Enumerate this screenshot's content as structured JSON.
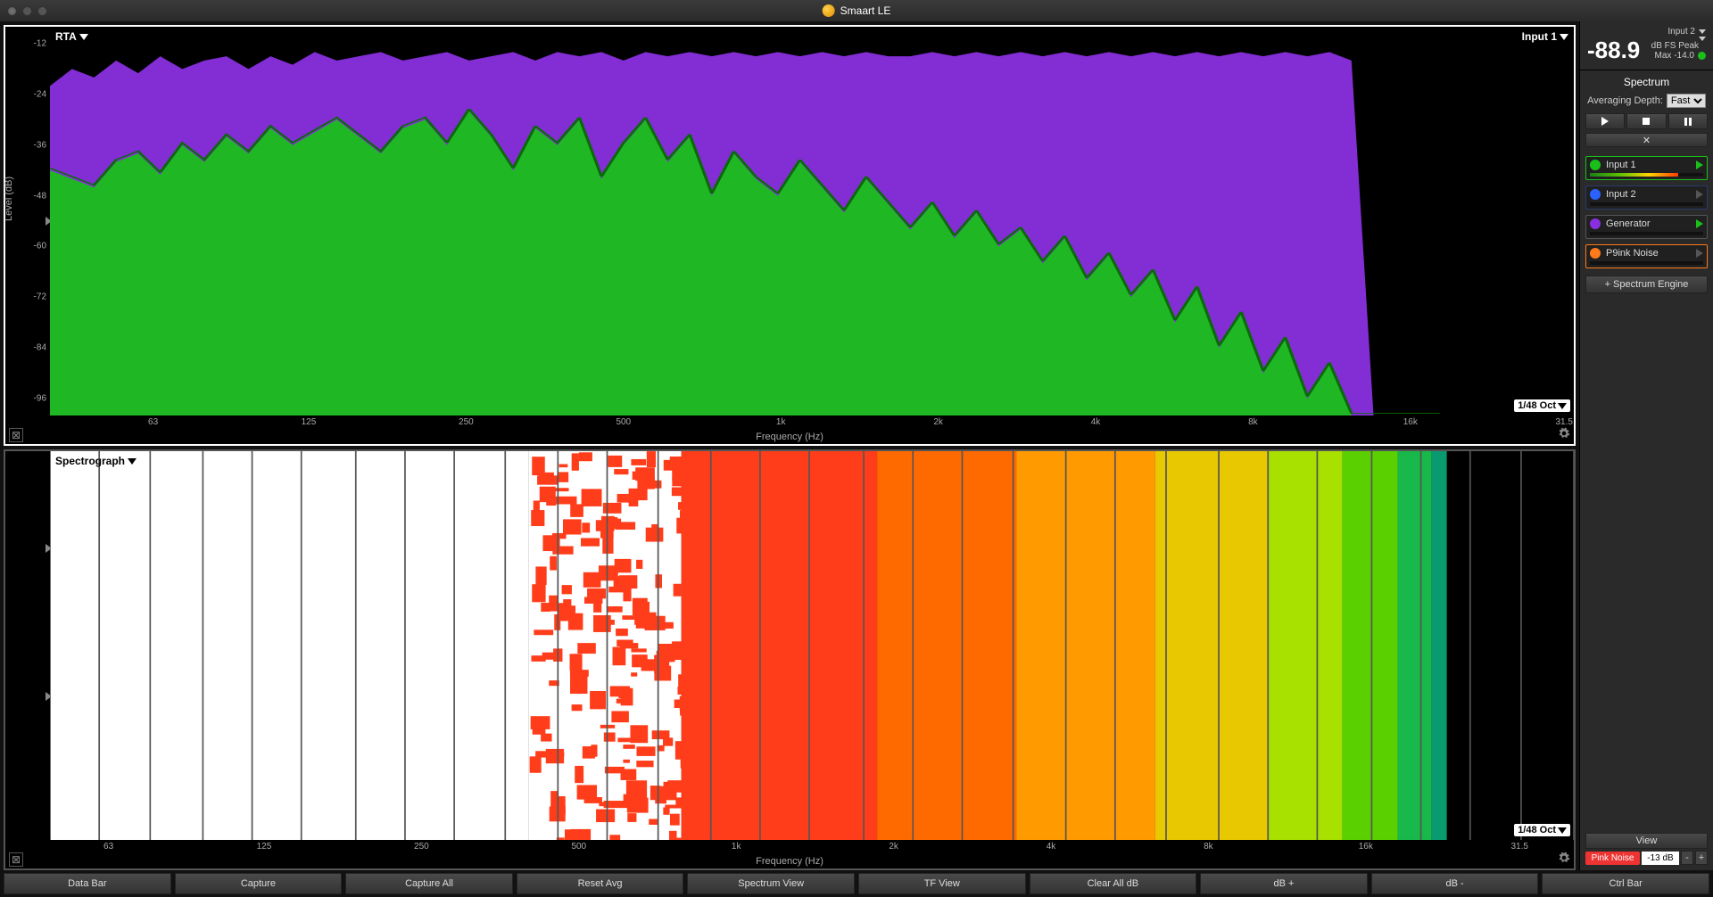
{
  "window": {
    "title": "Smaart LE"
  },
  "meter": {
    "input_select": "Input 2",
    "db_value": "-88.9",
    "mode": "dB FS Peak",
    "max_text": "Max -14.0",
    "indicator_color": "#1abf1a"
  },
  "spectrum_section": {
    "title": "Spectrum",
    "averaging_label": "Averaging Depth:",
    "averaging_value": "Fast",
    "add_engine": "+ Spectrum Engine"
  },
  "inputs_list": [
    {
      "label": "Input 1",
      "dot": "#1abf1a",
      "border": "#1abf1a",
      "play": "#1abf1a",
      "meter_pct": 78,
      "meter_grad": "linear-gradient(to right,#1a7f1a,#5ac000,#ffd400,#ff3a00)"
    },
    {
      "label": "Input 2",
      "dot": "#2a62ff",
      "border": "#2a3a6a",
      "play": "#555",
      "meter_pct": 0,
      "meter_grad": ""
    },
    {
      "label": "Generator",
      "dot": "#8a2fe0",
      "border": "#555",
      "play": "#1abf1a",
      "meter_pct": 0,
      "meter_grad": ""
    },
    {
      "label": "P9ink Noise",
      "dot": "#ff7a1a",
      "border": "#ff7a1a",
      "play": "#555",
      "meter_pct": 0,
      "meter_grad": ""
    }
  ],
  "view_btn": "View",
  "generator": {
    "label": "Pink Noise",
    "level": "-13 dB"
  },
  "bottom_buttons": [
    "Data Bar",
    "Capture",
    "Capture All",
    "Reset Avg",
    "Spectrum View",
    "TF View",
    "Clear All dB",
    "dB +",
    "dB -",
    "Ctrl Bar"
  ],
  "rta": {
    "title": "RTA",
    "source": "Input 1",
    "resolution": "1/48 Oct",
    "y_label": "Level (dB)",
    "x_label": "Frequency (Hz)",
    "y_min": -100,
    "y_max": -8,
    "y_ticks": [
      -12,
      -24,
      -36,
      -48,
      -60,
      -72,
      -84,
      -96
    ],
    "y_handle_db": -54,
    "x_ticks": [
      {
        "v": 63,
        "l": "63"
      },
      {
        "v": 125,
        "l": "125"
      },
      {
        "v": 250,
        "l": "250"
      },
      {
        "v": 500,
        "l": "500"
      },
      {
        "v": 1000,
        "l": "1k"
      },
      {
        "v": 2000,
        "l": "2k"
      },
      {
        "v": 4000,
        "l": "4k"
      },
      {
        "v": 8000,
        "l": "8k"
      },
      {
        "v": 16000,
        "l": "16k"
      },
      {
        "v": 31500,
        "l": "31.5"
      }
    ],
    "f_min": 40,
    "f_max": 40000,
    "colors": {
      "trace1": "#1abf1a",
      "trace2": "#8a2fe0",
      "grid": "#2a2a2a",
      "bg": "#000000"
    },
    "series": {
      "purple_db": [
        -22,
        -18,
        -20,
        -16,
        -19,
        -15,
        -18,
        -16,
        -15,
        -18,
        -15,
        -17,
        -14,
        -16,
        -15,
        -14,
        -16,
        -15,
        -14,
        -16,
        -15,
        -14,
        -16,
        -14,
        -15,
        -14,
        -16,
        -14,
        -15,
        -14,
        -15,
        -14,
        -15,
        -14,
        -15,
        -14,
        -15,
        -14,
        -15,
        -15,
        -14,
        -15,
        -14,
        -15,
        -14,
        -15,
        -14,
        -15,
        -14,
        -15,
        -14,
        -15,
        -14,
        -15,
        -14,
        -15,
        -14,
        -15,
        -14,
        -16,
        -100,
        -100,
        -100,
        -100
      ],
      "purple_stop_ratio": 0.912,
      "green_db": [
        -42,
        -44,
        -46,
        -40,
        -38,
        -43,
        -36,
        -40,
        -34,
        -38,
        -32,
        -36,
        -33,
        -30,
        -34,
        -38,
        -32,
        -30,
        -36,
        -28,
        -34,
        -42,
        -32,
        -36,
        -30,
        -44,
        -36,
        -30,
        -40,
        -34,
        -48,
        -38,
        -44,
        -48,
        -40,
        -46,
        -52,
        -44,
        -50,
        -56,
        -50,
        -58,
        -52,
        -60,
        -56,
        -64,
        -58,
        -68,
        -62,
        -72,
        -66,
        -78,
        -70,
        -84,
        -76,
        -90,
        -82,
        -96,
        -88,
        -100,
        -100,
        -100,
        -100,
        -100
      ]
    }
  },
  "spectro": {
    "title": "Spectrograph",
    "source": "Input 1",
    "resolution": "1/48 Oct",
    "x_label": "Frequency (Hz)",
    "f_min": 40,
    "f_max": 40000,
    "x_ticks": [
      {
        "v": 63,
        "l": "63"
      },
      {
        "v": 125,
        "l": "125"
      },
      {
        "v": 250,
        "l": "250"
      },
      {
        "v": 500,
        "l": "500"
      },
      {
        "v": 1000,
        "l": "1k"
      },
      {
        "v": 2000,
        "l": "2k"
      },
      {
        "v": 4000,
        "l": "4k"
      },
      {
        "v": 8000,
        "l": "8k"
      },
      {
        "v": 16000,
        "l": "16k"
      },
      {
        "v": 31500,
        "l": "31.5"
      }
    ],
    "y_handles": [
      0.25,
      0.63
    ],
    "bands": [
      {
        "f0": 40,
        "f1": 350,
        "fill": "#ffffff"
      },
      {
        "f0": 350,
        "f1": 700,
        "fill": "speckle"
      },
      {
        "f0": 700,
        "f1": 1700,
        "fill": "#ff3d1a"
      },
      {
        "f0": 1700,
        "f1": 3200,
        "fill": "#ff6a00"
      },
      {
        "f0": 3200,
        "f1": 6000,
        "fill": "#ff9a00"
      },
      {
        "f0": 6000,
        "f1": 10000,
        "fill": "#e8c800"
      },
      {
        "f0": 10000,
        "f1": 14000,
        "fill": "#a8e000"
      },
      {
        "f0": 14000,
        "f1": 18000,
        "fill": "#5ad000"
      },
      {
        "f0": 18000,
        "f1": 21000,
        "fill": "#18b84a"
      },
      {
        "f0": 21000,
        "f1": 22500,
        "fill": "#0a9a70"
      },
      {
        "f0": 22500,
        "f1": 40000,
        "fill": "#000000"
      }
    ],
    "grid_color": "#555555"
  }
}
